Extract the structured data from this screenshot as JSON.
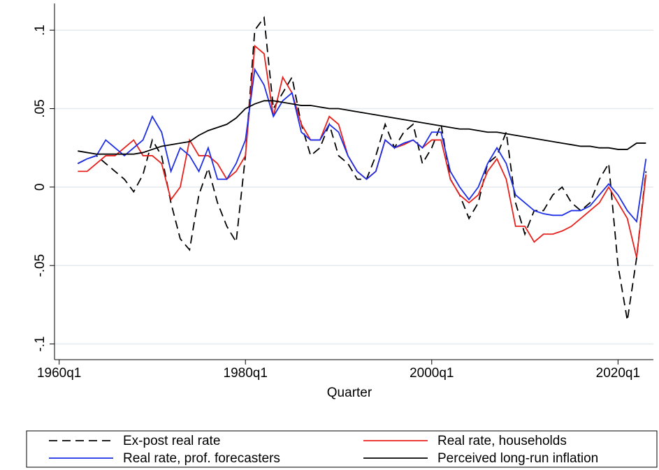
{
  "chart_data": {
    "type": "line",
    "x_label": "Quarter",
    "x": [
      1962,
      1963,
      1964,
      1965,
      1966,
      1967,
      1968,
      1969,
      1970,
      1971,
      1972,
      1973,
      1974,
      1975,
      1976,
      1977,
      1978,
      1979,
      1980,
      1981,
      1982,
      1983,
      1984,
      1985,
      1986,
      1987,
      1988,
      1989,
      1990,
      1991,
      1992,
      1993,
      1994,
      1995,
      1996,
      1997,
      1998,
      1999,
      2000,
      2001,
      2002,
      2003,
      2004,
      2005,
      2006,
      2007,
      2008,
      2009,
      2010,
      2011,
      2012,
      2013,
      2014,
      2015,
      2016,
      2017,
      2018,
      2019,
      2020,
      2021,
      2022,
      2023
    ],
    "series": [
      {
        "name": "Ex-post real rate",
        "color": "#000000",
        "line_style": "dashed",
        "values": [
          0.015,
          0.018,
          0.02,
          0.015,
          0.01,
          0.005,
          -0.003,
          0.008,
          0.03,
          0.02,
          -0.01,
          -0.033,
          -0.04,
          -0.005,
          0.012,
          -0.01,
          -0.025,
          -0.035,
          0.02,
          0.1,
          0.108,
          0.05,
          0.06,
          0.07,
          0.04,
          0.02,
          0.025,
          0.04,
          0.02,
          0.015,
          0.005,
          0.005,
          0.02,
          0.04,
          0.025,
          0.035,
          0.04,
          0.015,
          0.025,
          0.04,
          0.005,
          -0.005,
          -0.02,
          -0.01,
          0.015,
          0.02,
          0.035,
          -0.01,
          -0.03,
          -0.015,
          -0.015,
          -0.005,
          0.0,
          -0.01,
          -0.015,
          -0.01,
          0.005,
          0.015,
          -0.05,
          -0.085,
          -0.045,
          0.01
        ]
      },
      {
        "name": "Real rate, households",
        "color": "#e8201c",
        "line_style": "solid",
        "values": [
          0.01,
          0.01,
          0.015,
          0.02,
          0.02,
          0.025,
          0.03,
          0.02,
          0.02,
          0.015,
          -0.008,
          0.0,
          0.03,
          0.02,
          0.02,
          0.015,
          0.005,
          0.01,
          0.02,
          0.09,
          0.085,
          0.045,
          0.07,
          0.06,
          0.04,
          0.03,
          0.03,
          0.045,
          0.04,
          0.02,
          0.01,
          0.005,
          0.01,
          0.03,
          0.025,
          0.027,
          0.03,
          0.025,
          0.03,
          0.03,
          0.005,
          -0.005,
          -0.01,
          -0.005,
          0.01,
          0.018,
          0.005,
          -0.025,
          -0.025,
          -0.035,
          -0.03,
          -0.03,
          -0.028,
          -0.025,
          -0.02,
          -0.015,
          -0.01,
          0.0,
          -0.01,
          -0.02,
          -0.045,
          0.008
        ]
      },
      {
        "name": "Real rate, prof. forecasters",
        "color": "#1c2ee6",
        "line_style": "solid",
        "values": [
          0.015,
          0.018,
          0.02,
          0.03,
          0.025,
          0.02,
          0.025,
          0.03,
          0.045,
          0.035,
          0.01,
          0.025,
          0.02,
          0.01,
          0.025,
          0.005,
          0.005,
          0.015,
          0.03,
          0.075,
          0.065,
          0.045,
          0.055,
          0.06,
          0.035,
          0.03,
          0.03,
          0.04,
          0.035,
          0.02,
          0.01,
          0.005,
          0.01,
          0.03,
          0.025,
          0.028,
          0.03,
          0.025,
          0.035,
          0.035,
          0.01,
          0.0,
          -0.008,
          0.0,
          0.015,
          0.025,
          0.015,
          -0.005,
          -0.01,
          -0.015,
          -0.017,
          -0.018,
          -0.018,
          -0.015,
          -0.015,
          -0.012,
          -0.005,
          0.002,
          -0.005,
          -0.015,
          -0.022,
          0.018
        ]
      },
      {
        "name": "Perceived long-run inflation",
        "color": "#000000",
        "line_style": "solid",
        "values": [
          0.023,
          0.022,
          0.021,
          0.021,
          0.021,
          0.021,
          0.021,
          0.022,
          0.024,
          0.026,
          0.027,
          0.028,
          0.029,
          0.033,
          0.036,
          0.038,
          0.04,
          0.044,
          0.05,
          0.053,
          0.055,
          0.055,
          0.054,
          0.053,
          0.052,
          0.052,
          0.051,
          0.05,
          0.05,
          0.049,
          0.048,
          0.047,
          0.046,
          0.045,
          0.044,
          0.043,
          0.042,
          0.041,
          0.04,
          0.039,
          0.038,
          0.037,
          0.037,
          0.036,
          0.035,
          0.035,
          0.034,
          0.033,
          0.032,
          0.031,
          0.03,
          0.029,
          0.028,
          0.027,
          0.026,
          0.026,
          0.025,
          0.025,
          0.024,
          0.024,
          0.028,
          0.028
        ]
      }
    ],
    "xlim": [
      1959.5,
      2023.8
    ],
    "xticks": [
      {
        "value": 1960,
        "label": "1960q1"
      },
      {
        "value": 1980,
        "label": "1980q1"
      },
      {
        "value": 2000,
        "label": "2000q1"
      },
      {
        "value": 2020,
        "label": "2020q1"
      }
    ],
    "ylim": [
      -0.11,
      0.117
    ],
    "yticks": [
      {
        "value": -0.1,
        "label": "-.1"
      },
      {
        "value": -0.05,
        "label": "-.05"
      },
      0,
      {
        "value": 0.05,
        "label": ".05"
      },
      {
        "value": 0.1,
        "label": ".1"
      }
    ],
    "grid": true,
    "legend": "bottom"
  }
}
